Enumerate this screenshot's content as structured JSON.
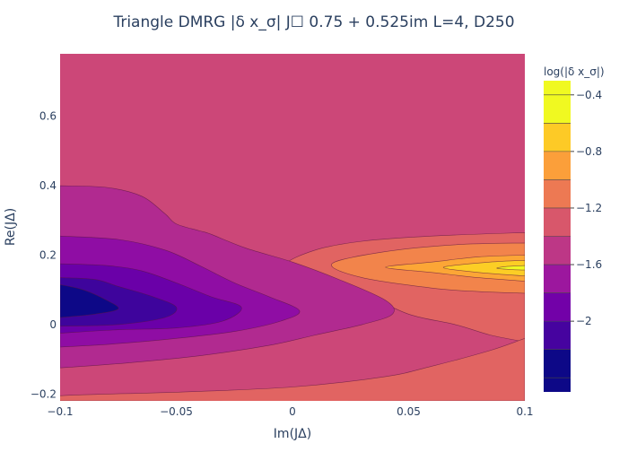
{
  "chart_data": {
    "type": "contour",
    "title": "Triangle DMRG |δ x_σ| J☐ 0.75 + 0.525im L=4, D250",
    "xlabel": "Im(JΔ)",
    "ylabel": "Re(JΔ)",
    "xlim": [
      -0.1,
      0.1
    ],
    "ylim": [
      -0.22,
      0.78
    ],
    "x_ticks": [
      -0.1,
      -0.05,
      0,
      0.05,
      0.1
    ],
    "x_tick_labels": [
      "−0.1",
      "−0.05",
      "0",
      "0.05",
      "0.1"
    ],
    "y_ticks": [
      -0.2,
      0,
      0.2,
      0.4,
      0.6
    ],
    "y_tick_labels": [
      "−0.2",
      "0",
      "0.2",
      "0.4",
      "0.6"
    ],
    "colorbar": {
      "title": "log(|δ x_σ|)",
      "range": [
        -2.5,
        -0.3
      ],
      "ticks": [
        -2,
        -1.6,
        -1.2,
        -0.8,
        -0.4
      ],
      "tick_labels": [
        "−2",
        "−1.6",
        "−1.2",
        "−0.8",
        "−0.4"
      ],
      "levels": [
        -2.4,
        -2.2,
        -2.0,
        -1.8,
        -1.6,
        -1.4,
        -1.2,
        -1.0,
        -0.8,
        -0.6,
        -0.4
      ],
      "colors": [
        "#0d0887",
        "#46039f",
        "#7201a8",
        "#9c179e",
        "#bd3786",
        "#d8576b",
        "#ed7953",
        "#fb9f3a",
        "#fdca26",
        "#f0f921"
      ]
    },
    "background_color": "#cc4778",
    "regions": [
      {
        "color": "#e16462",
        "points": [
          [
            0.1,
            0.265
          ],
          [
            0.06,
            0.255
          ],
          [
            0.03,
            0.24
          ],
          [
            0.01,
            0.215
          ],
          [
            -0.003,
            0.17
          ],
          [
            0.01,
            0.13
          ],
          [
            0.03,
            0.09
          ],
          [
            0.05,
            0.03
          ],
          [
            0.07,
            0.0
          ],
          [
            0.085,
            -0.03
          ],
          [
            0.1,
            -0.05
          ]
        ]
      },
      {
        "color": "#e16462",
        "points": [
          [
            0.1,
            -0.04
          ],
          [
            0.085,
            -0.075
          ],
          [
            0.06,
            -0.12
          ],
          [
            0.04,
            -0.15
          ],
          [
            0.0,
            -0.18
          ],
          [
            -0.05,
            -0.195
          ],
          [
            -0.1,
            -0.205
          ],
          [
            -0.1,
            -0.22
          ],
          [
            0.1,
            -0.22
          ]
        ]
      },
      {
        "color": "#f2844b",
        "points": [
          [
            0.1,
            0.235
          ],
          [
            0.07,
            0.23
          ],
          [
            0.04,
            0.21
          ],
          [
            0.017,
            0.175
          ],
          [
            0.03,
            0.135
          ],
          [
            0.06,
            0.105
          ],
          [
            0.08,
            0.095
          ],
          [
            0.1,
            0.09
          ]
        ]
      },
      {
        "color": "#fca636",
        "points": [
          [
            0.1,
            0.2
          ],
          [
            0.08,
            0.195
          ],
          [
            0.06,
            0.18
          ],
          [
            0.04,
            0.165
          ],
          [
            0.06,
            0.15
          ],
          [
            0.08,
            0.135
          ],
          [
            0.1,
            0.125
          ]
        ]
      },
      {
        "color": "#fcce25",
        "points": [
          [
            0.1,
            0.185
          ],
          [
            0.085,
            0.18
          ],
          [
            0.065,
            0.165
          ],
          [
            0.08,
            0.15
          ],
          [
            0.1,
            0.14
          ]
        ]
      },
      {
        "color": "#f0f921",
        "points": [
          [
            0.1,
            0.17
          ],
          [
            0.092,
            0.167
          ],
          [
            0.088,
            0.162
          ],
          [
            0.095,
            0.158
          ],
          [
            0.1,
            0.157
          ]
        ]
      },
      {
        "color": "#b12a90",
        "points": [
          [
            -0.1,
            0.4
          ],
          [
            -0.08,
            0.395
          ],
          [
            -0.065,
            0.37
          ],
          [
            -0.055,
            0.32
          ],
          [
            -0.05,
            0.29
          ],
          [
            -0.04,
            0.27
          ],
          [
            -0.035,
            0.26
          ],
          [
            -0.02,
            0.22
          ],
          [
            0.0,
            0.18
          ],
          [
            0.02,
            0.13
          ],
          [
            0.04,
            0.07
          ],
          [
            0.043,
            0.03
          ],
          [
            0.03,
            0.0
          ],
          [
            0.01,
            -0.03
          ],
          [
            -0.01,
            -0.06
          ],
          [
            -0.04,
            -0.09
          ],
          [
            -0.07,
            -0.11
          ],
          [
            -0.1,
            -0.125
          ]
        ]
      },
      {
        "color": "#8f0da4",
        "points": [
          [
            -0.1,
            0.255
          ],
          [
            -0.075,
            0.245
          ],
          [
            -0.055,
            0.215
          ],
          [
            -0.04,
            0.17
          ],
          [
            -0.025,
            0.12
          ],
          [
            -0.01,
            0.08
          ],
          [
            0.003,
            0.04
          ],
          [
            -0.005,
            0.01
          ],
          [
            -0.025,
            -0.02
          ],
          [
            -0.05,
            -0.04
          ],
          [
            -0.075,
            -0.055
          ],
          [
            -0.1,
            -0.065
          ]
        ]
      },
      {
        "color": "#6a00a8",
        "points": [
          [
            -0.1,
            0.175
          ],
          [
            -0.08,
            0.17
          ],
          [
            -0.065,
            0.155
          ],
          [
            -0.05,
            0.12
          ],
          [
            -0.035,
            0.08
          ],
          [
            -0.022,
            0.05
          ],
          [
            -0.03,
            0.01
          ],
          [
            -0.05,
            -0.01
          ],
          [
            -0.075,
            -0.015
          ],
          [
            -0.1,
            -0.025
          ]
        ]
      },
      {
        "color": "#3e049c",
        "points": [
          [
            -0.1,
            0.135
          ],
          [
            -0.085,
            0.13
          ],
          [
            -0.075,
            0.11
          ],
          [
            -0.06,
            0.08
          ],
          [
            -0.05,
            0.05
          ],
          [
            -0.055,
            0.02
          ],
          [
            -0.075,
            0.0
          ],
          [
            -0.1,
            -0.005
          ]
        ]
      },
      {
        "color": "#0d0887",
        "points": [
          [
            -0.1,
            0.115
          ],
          [
            -0.09,
            0.1
          ],
          [
            -0.08,
            0.07
          ],
          [
            -0.075,
            0.045
          ],
          [
            -0.085,
            0.03
          ],
          [
            -0.1,
            0.02
          ]
        ]
      }
    ]
  }
}
